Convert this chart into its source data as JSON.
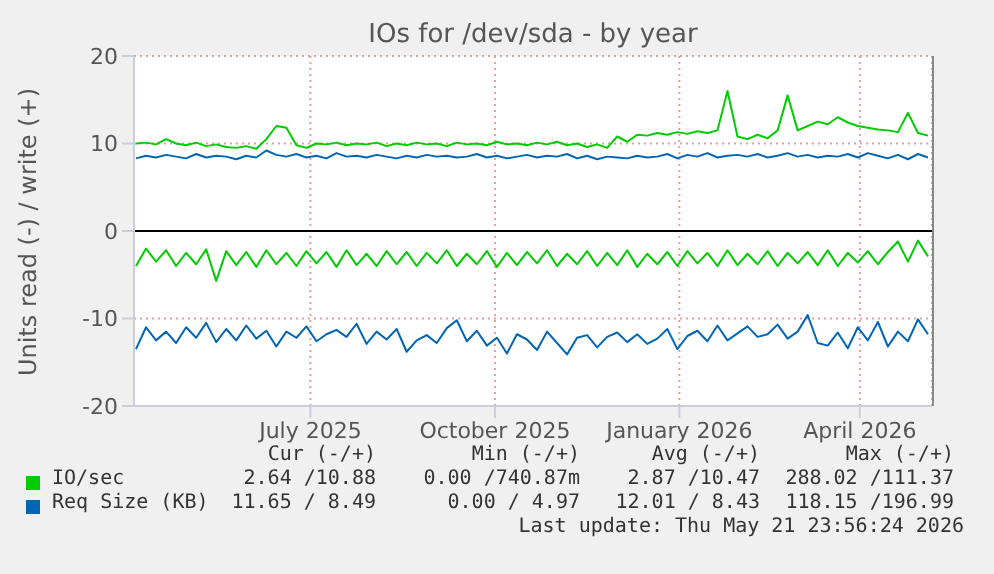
{
  "chart_data": {
    "type": "line",
    "title": "IOs for /dev/sda - by year",
    "ylabel": "Units read (-) / write (+)",
    "x": [
      "2025-04-20",
      "2025-04-25",
      "2025-04-30",
      "2025-05-05",
      "2025-05-10",
      "2025-05-15",
      "2025-05-20",
      "2025-05-25",
      "2025-05-30",
      "2025-06-04",
      "2025-06-09",
      "2025-06-14",
      "2025-06-19",
      "2025-06-24",
      "2025-06-29",
      "2025-07-04",
      "2025-07-09",
      "2025-07-14",
      "2025-07-19",
      "2025-07-24",
      "2025-07-29",
      "2025-08-03",
      "2025-08-08",
      "2025-08-13",
      "2025-08-18",
      "2025-08-23",
      "2025-08-28",
      "2025-09-02",
      "2025-09-07",
      "2025-09-12",
      "2025-09-17",
      "2025-09-22",
      "2025-09-27",
      "2025-10-02",
      "2025-10-07",
      "2025-10-12",
      "2025-10-17",
      "2025-10-22",
      "2025-10-27",
      "2025-11-01",
      "2025-11-06",
      "2025-11-11",
      "2025-11-16",
      "2025-11-21",
      "2025-11-26",
      "2025-12-01",
      "2025-12-06",
      "2025-12-11",
      "2025-12-16",
      "2025-12-21",
      "2025-12-26",
      "2025-12-31",
      "2026-01-05",
      "2026-01-10",
      "2026-01-15",
      "2026-01-20",
      "2026-01-25",
      "2026-01-30",
      "2026-02-04",
      "2026-02-09",
      "2026-02-14",
      "2026-02-19",
      "2026-02-24",
      "2026-03-01",
      "2026-03-06",
      "2026-03-11",
      "2026-03-16",
      "2026-03-21",
      "2026-03-26",
      "2026-03-31",
      "2026-04-05",
      "2026-04-10",
      "2026-04-15",
      "2026-04-20",
      "2026-04-25",
      "2026-04-30",
      "2026-05-05",
      "2026-05-10",
      "2026-05-15",
      "2026-05-20"
    ],
    "series": [
      {
        "name": "IO/sec",
        "color": "#00cc00",
        "values": [
          10,
          10.1,
          9.9,
          10.5,
          10,
          9.8,
          10.1,
          9.7,
          9.9,
          9.6,
          9.5,
          9.7,
          9.4,
          10.5,
          12,
          11.8,
          9.8,
          9.5,
          10,
          9.9,
          10.1,
          9.8,
          10,
          9.9,
          10.1,
          9.7,
          10,
          9.8,
          10.1,
          9.9,
          10,
          9.7,
          10.1,
          9.9,
          10,
          9.8,
          10.2,
          9.9,
          10,
          9.8,
          10.1,
          9.9,
          10.2,
          9.8,
          10,
          9.6,
          9.9,
          9.5,
          10.8,
          10.2,
          11,
          10.9,
          11.2,
          11,
          11.3,
          11.1,
          11.4,
          11.2,
          11.5,
          16,
          10.8,
          10.5,
          11,
          10.6,
          11.5,
          15.5,
          11.5,
          12,
          12.5,
          12.2,
          13,
          12.4,
          12,
          11.8,
          11.6,
          11.5,
          11.3,
          13.5,
          11.2,
          10.9
        ]
      },
      {
        "color": "#00cc00",
        "values": [
          -4,
          -2,
          -3.5,
          -2.2,
          -4,
          -2.5,
          -3.8,
          -2.1,
          -5.7,
          -2.3,
          -3.9,
          -2.4,
          -4.1,
          -2.2,
          -3.8,
          -2.5,
          -4,
          -2.3,
          -3.7,
          -2.4,
          -4.1,
          -2.2,
          -3.9,
          -2.6,
          -4,
          -2.3,
          -3.8,
          -2.4,
          -4,
          -2.5,
          -3.7,
          -2.2,
          -4,
          -2.6,
          -3.8,
          -2.3,
          -4.1,
          -2.5,
          -3.9,
          -2.4,
          -3.7,
          -2.2,
          -4,
          -2.6,
          -3.8,
          -2.3,
          -4,
          -2.5,
          -3.9,
          -2.2,
          -4.1,
          -2.6,
          -3.8,
          -2.4,
          -4,
          -2.3,
          -3.7,
          -2.5,
          -4,
          -2.2,
          -3.9,
          -2.6,
          -3.8,
          -2.3,
          -4,
          -2.5,
          -3.7,
          -2.4,
          -3.9,
          -2.2,
          -4,
          -2.5,
          -3.6,
          -2.3,
          -3.8,
          -2.4,
          -1.2,
          -3.5,
          -1.1,
          -2.9
        ]
      },
      {
        "name": "Req Size (KB)",
        "color": "#0066b3",
        "values": [
          8.3,
          8.6,
          8.4,
          8.7,
          8.5,
          8.3,
          8.8,
          8.4,
          8.6,
          8.5,
          8.2,
          8.6,
          8.4,
          9.2,
          8.7,
          8.5,
          8.8,
          8.4,
          8.6,
          8.3,
          8.9,
          8.5,
          8.6,
          8.4,
          8.7,
          8.5,
          8.3,
          8.6,
          8.4,
          8.7,
          8.5,
          8.6,
          8.4,
          8.5,
          8.8,
          8.4,
          8.6,
          8.3,
          8.5,
          8.7,
          8.4,
          8.6,
          8.5,
          8.8,
          8.3,
          8.6,
          8.2,
          8.5,
          8.4,
          8.3,
          8.6,
          8.4,
          8.5,
          8.8,
          8.3,
          8.7,
          8.5,
          8.9,
          8.4,
          8.6,
          8.7,
          8.5,
          8.8,
          8.4,
          8.6,
          8.9,
          8.5,
          8.7,
          8.4,
          8.6,
          8.5,
          8.8,
          8.4,
          8.9,
          8.6,
          8.3,
          8.7,
          8.2,
          8.8,
          8.4
        ]
      },
      {
        "color": "#0066b3",
        "values": [
          -13.5,
          -11,
          -12.5,
          -11.5,
          -12.8,
          -11,
          -12.2,
          -10.5,
          -12.7,
          -11.2,
          -12.5,
          -10.8,
          -12.3,
          -11.4,
          -13.2,
          -11.5,
          -12.2,
          -10.9,
          -12.6,
          -11.8,
          -11.3,
          -12.1,
          -10.6,
          -12.9,
          -11.5,
          -12.4,
          -11.2,
          -13.8,
          -12.5,
          -11.9,
          -12.8,
          -11.1,
          -10.2,
          -12.6,
          -11.4,
          -13.1,
          -12.2,
          -14,
          -11.8,
          -12.4,
          -13.6,
          -11.5,
          -12.8,
          -14.1,
          -12.2,
          -11.9,
          -13.3,
          -12.1,
          -11.6,
          -12.7,
          -11.8,
          -12.9,
          -12.3,
          -11.2,
          -13.5,
          -12,
          -11.4,
          -12.6,
          -10.8,
          -12.5,
          -11.7,
          -10.9,
          -12.1,
          -11.8,
          -10.7,
          -12.3,
          -11.5,
          -9.6,
          -12.8,
          -13.1,
          -11.6,
          -13.4,
          -11,
          -12.5,
          -10.4,
          -13.2,
          -11.5,
          -12.6,
          -10.1,
          -11.8
        ]
      }
    ],
    "xlim": [
      "2025-04-19",
      "2026-05-22"
    ],
    "xticks": [
      {
        "value": "2025-07-16",
        "label": "July 2025"
      },
      {
        "value": "2025-10-16",
        "label": "October 2025"
      },
      {
        "value": "2026-01-16",
        "label": "January 2026"
      },
      {
        "value": "2026-04-16",
        "label": "April 2026"
      }
    ],
    "ylim": [
      -20,
      20
    ],
    "yticks": [
      -20,
      -10,
      0,
      10,
      20
    ],
    "grid": true,
    "legend": "bottom",
    "annotations": [
      "Cur (-/+)",
      "Min (-/+)",
      "Avg (-/+)",
      "Max (-/+)",
      "2.64 /10.88",
      "0.00 /740.87m",
      "2.87 /10.47",
      "288.02 /111.37",
      "11.65 / 8.49",
      "0.00 / 4.97",
      "12.01 / 8.43",
      "118.15 /196.99",
      "Last update: Thu May 21 23:56:24 2026"
    ]
  }
}
